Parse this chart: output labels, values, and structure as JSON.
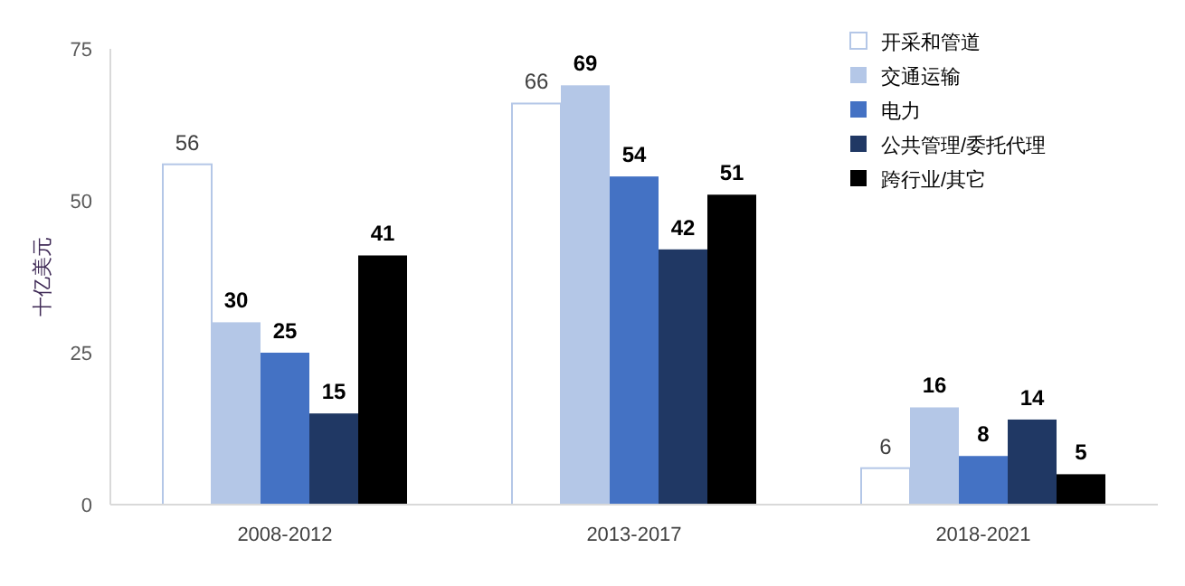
{
  "chart_data": {
    "type": "bar",
    "ylabel": "十亿美元",
    "categories": [
      "2008-2012",
      "2013-2017",
      "2018-2021"
    ],
    "series": [
      {
        "name": "开采和管道",
        "color": "#ffffff",
        "values": [
          56,
          66,
          6
        ]
      },
      {
        "name": "交通运输",
        "color": "#b4c7e7",
        "values": [
          30,
          69,
          16
        ]
      },
      {
        "name": "电力",
        "color": "#4472c4",
        "values": [
          25,
          54,
          8
        ]
      },
      {
        "name": "公共管理/委托代理",
        "color": "#203864",
        "values": [
          15,
          42,
          14
        ]
      },
      {
        "name": "跨行业/其它",
        "color": "#000000",
        "values": [
          41,
          51,
          5
        ]
      }
    ],
    "ylim": [
      0,
      75
    ],
    "yticks": [
      0,
      25,
      50,
      75
    ],
    "data_labels": true,
    "legend": "top right",
    "grid": false
  }
}
